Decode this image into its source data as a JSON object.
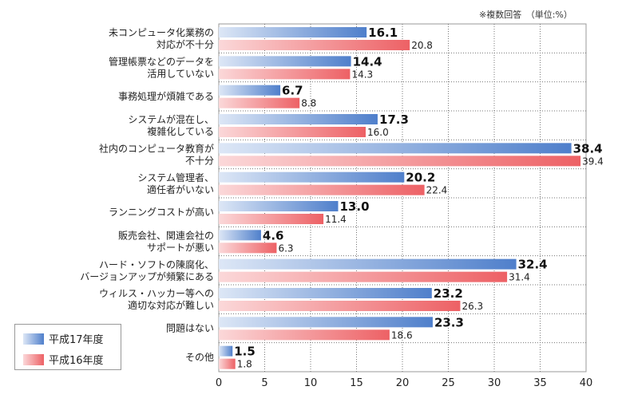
{
  "note": "※複数回答　（単位:%）",
  "legend": [
    {
      "label": "平成17年度",
      "color": "#5b88cf"
    },
    {
      "label": "平成16年度",
      "color": "#ef6f73"
    }
  ],
  "chart_data": {
    "type": "bar",
    "orientation": "horizontal",
    "xlim": [
      0,
      40
    ],
    "xticks": [
      "0",
      "5",
      "10",
      "15",
      "20",
      "25",
      "30",
      "35",
      "40"
    ],
    "grid": true,
    "legend_position": "bottom-left",
    "categories": [
      [
        "未コンピュータ化業務の",
        "対応が不十分"
      ],
      [
        "管理帳票などのデータを",
        "活用していない"
      ],
      [
        "事務処理が煩雑である"
      ],
      [
        "システムが混在し、",
        "複雑化している"
      ],
      [
        "社内のコンピュータ教育が",
        "不十分"
      ],
      [
        "システム管理者、",
        "適任者がいない"
      ],
      [
        "ランニングコストが高い"
      ],
      [
        "販売会社、関連会社の",
        "サポートが悪い"
      ],
      [
        "ハード・ソフトの陳腐化、",
        "バージョンアップが頻繁にある"
      ],
      [
        "ウィルス・ハッカー等への",
        "適切な対応が難しい"
      ],
      [
        "問題はない"
      ],
      [
        "その他"
      ]
    ],
    "series": [
      {
        "name": "平成17年度",
        "color": "#5b88cf",
        "values": [
          16.1,
          14.4,
          6.7,
          17.3,
          38.4,
          20.2,
          13.0,
          4.6,
          32.4,
          23.2,
          23.3,
          1.5
        ],
        "value_labels": [
          "16.1",
          "14.4",
          "6.7",
          "17.3",
          "38.4",
          "20.2",
          "13.0",
          "4.6",
          "32.4",
          "23.2",
          "23.3",
          "1.5"
        ]
      },
      {
        "name": "平成16年度",
        "color": "#ef6f73",
        "values": [
          20.8,
          14.3,
          8.8,
          16.0,
          39.4,
          22.4,
          11.4,
          6.3,
          31.4,
          26.3,
          18.6,
          1.8
        ],
        "value_labels": [
          "20.8",
          "14.3",
          "8.8",
          "16.0",
          "39.4",
          "22.4",
          "11.4",
          "6.3",
          "31.4",
          "26.3",
          "18.6",
          "1.8"
        ]
      }
    ]
  }
}
